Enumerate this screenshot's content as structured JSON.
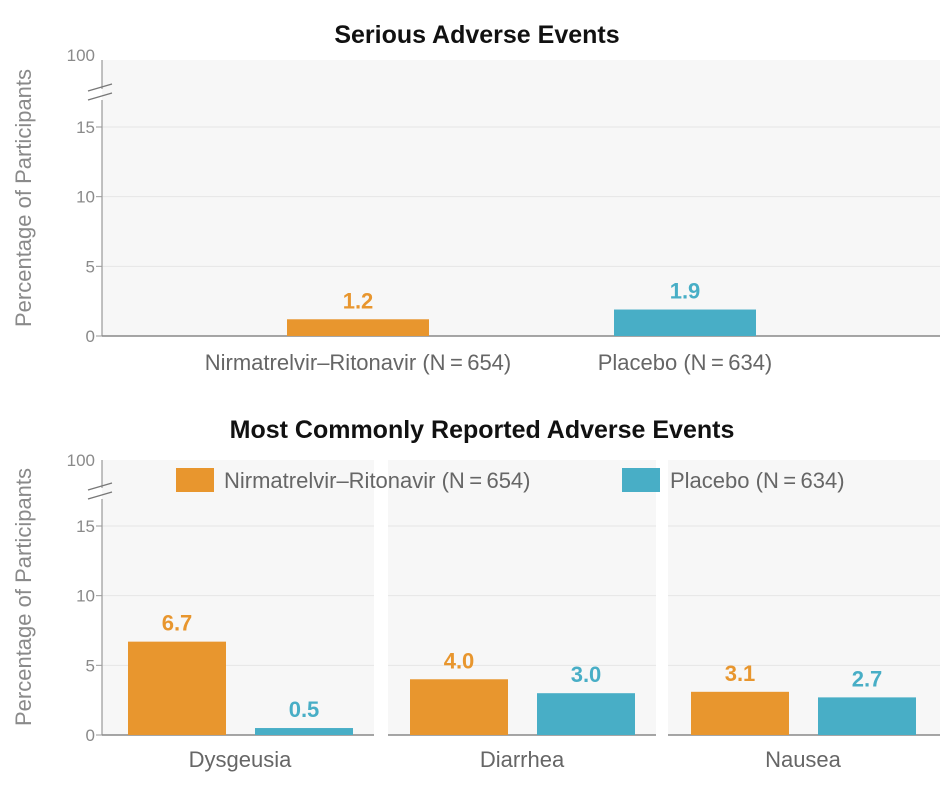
{
  "chart_data": [
    {
      "type": "bar",
      "title": "Serious Adverse Events",
      "ylabel": "Percentage of Participants",
      "ylim": [
        0,
        15
      ],
      "ybreak_label": "100",
      "yticks": [
        "0",
        "5",
        "10",
        "15"
      ],
      "categories": [
        "Nirmatrelvir–Ritonavir (N = 654)",
        "Placebo (N = 634)"
      ],
      "values": [
        1.2,
        1.9
      ],
      "value_labels": [
        "1.2",
        "1.9"
      ],
      "colors": [
        "#e8962e",
        "#48aec6"
      ]
    },
    {
      "type": "bar",
      "title": "Most Commonly Reported Adverse Events",
      "ylabel": "Percentage of Participants",
      "ylim": [
        0,
        15
      ],
      "ybreak_label": "100",
      "yticks": [
        "0",
        "5",
        "10",
        "15"
      ],
      "categories": [
        "Dysgeusia",
        "Diarrhea",
        "Nausea"
      ],
      "series": [
        {
          "name": "Nirmatrelvir–Ritonavir (N = 654)",
          "color": "#e8962e",
          "values": [
            6.7,
            4.0,
            3.1
          ],
          "value_labels": [
            "6.7",
            "4.0",
            "3.1"
          ]
        },
        {
          "name": "Placebo (N = 634)",
          "color": "#48aec6",
          "values": [
            0.5,
            3.0,
            2.7
          ],
          "value_labels": [
            "0.5",
            "3.0",
            "2.7"
          ]
        }
      ],
      "legend_position": "top"
    }
  ]
}
